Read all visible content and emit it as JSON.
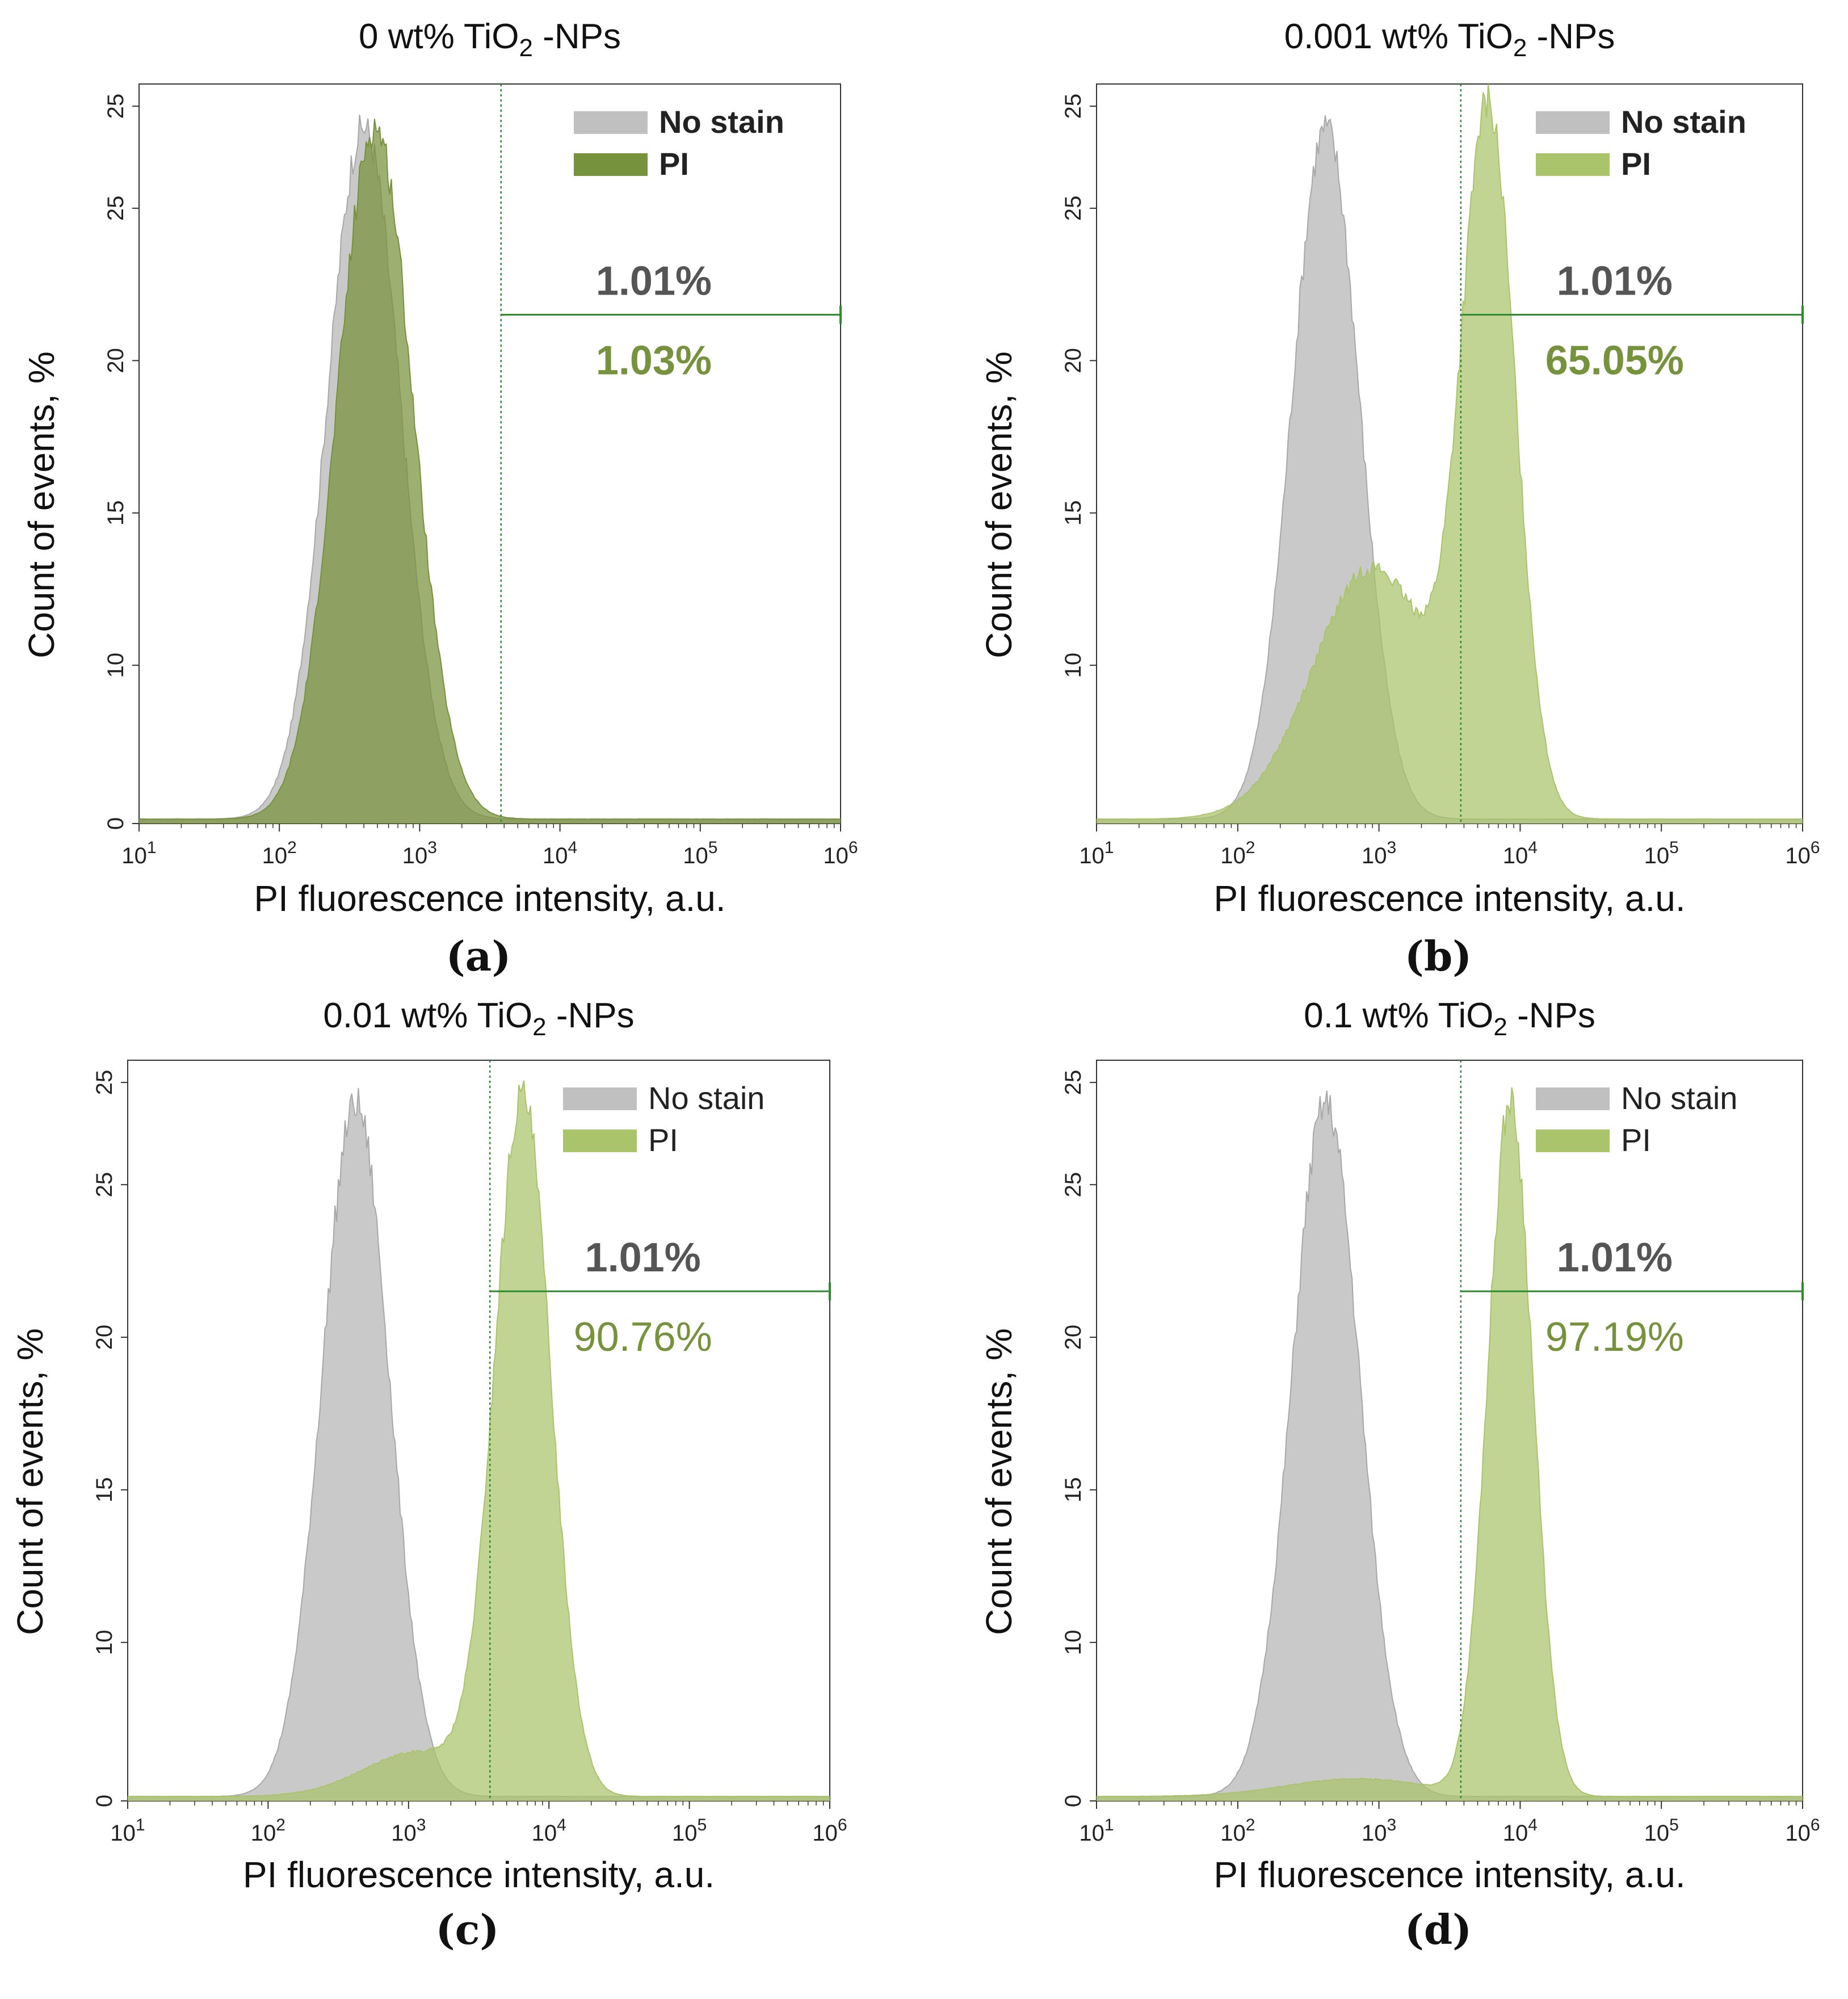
{
  "chart_data": [
    {
      "type": "area",
      "panel_label": "(a)",
      "title": {
        "prefix": "0 wt% TiO",
        "sub": "2",
        "suffix": " -NPs"
      },
      "xlabel": "PI fluorescence intensity, a.u.",
      "ylabel": "Count of events, %",
      "x_scale": "log",
      "xlim": [
        10,
        1000000
      ],
      "ylim": [
        0,
        25
      ],
      "x_tick_labels": [
        {
          "base": "10",
          "exp": "1",
          "value": 10
        },
        {
          "base": "10",
          "exp": "2",
          "value": 100
        },
        {
          "base": "10",
          "exp": "3",
          "value": 1000
        },
        {
          "base": "10",
          "exp": "4",
          "value": 10000
        },
        {
          "base": "10",
          "exp": "5",
          "value": 100000
        },
        {
          "base": "10",
          "exp": "6",
          "value": 1000000
        }
      ],
      "y_tick_labels": [
        "0",
        "10",
        "15",
        "20",
        "25",
        "25"
      ],
      "legend": {
        "placement": "top-right",
        "bold": true
      },
      "series": [
        {
          "name": "No stain",
          "color": "#c0c0c0",
          "peaks": [
            {
              "x": 400,
              "height": 23.4,
              "width": 0.26
            }
          ]
        },
        {
          "name": "PI",
          "color": "#77923c",
          "peaks": [
            {
              "x": 480,
              "height": 23.4,
              "width": 0.27
            }
          ]
        }
      ],
      "gate_x": 3800,
      "gate_y": 17.2,
      "gate_values": {
        "no_stain": "1.01%",
        "pi": "1.03%"
      },
      "pct_bold": true
    },
    {
      "type": "area",
      "panel_label": "(b)",
      "title": {
        "prefix": "0.001 wt% TiO",
        "sub": "2",
        "suffix": " -NPs"
      },
      "xlabel": "PI fluorescence intensity, a.u.",
      "ylabel": "Count of events, %",
      "x_scale": "log",
      "xlim": [
        10,
        1000000
      ],
      "ylim": [
        0,
        25
      ],
      "x_tick_labels": [
        {
          "base": "10",
          "exp": "1",
          "value": 10
        },
        {
          "base": "10",
          "exp": "2",
          "value": 100
        },
        {
          "base": "10",
          "exp": "3",
          "value": 1000
        },
        {
          "base": "10",
          "exp": "4",
          "value": 10000
        },
        {
          "base": "10",
          "exp": "5",
          "value": 100000
        },
        {
          "base": "10",
          "exp": "6",
          "value": 1000000
        }
      ],
      "y_tick_labels": [
        "10",
        "15",
        "20",
        "25",
        "25"
      ],
      "legend": {
        "placement": "top-right",
        "bold": true
      },
      "series": [
        {
          "name": "No stain",
          "color": "#c0c0c0",
          "peaks": [
            {
              "x": 420,
              "height": 23.4,
              "width": 0.24
            }
          ]
        },
        {
          "name": "PI",
          "color": "#a9c46b",
          "peaks": [
            {
              "x": 6000,
              "height": 23.0,
              "width": 0.19
            },
            {
              "x": 900,
              "height": 8.5,
              "width": 0.42
            }
          ]
        }
      ],
      "gate_x": 3800,
      "gate_y": 17.2,
      "gate_values": {
        "no_stain": "1.01%",
        "pi": "65.05%"
      },
      "pct_bold": true
    },
    {
      "type": "area",
      "panel_label": "(c)",
      "title": {
        "prefix": "0.01 wt% TiO",
        "sub": "2",
        "suffix": " -NPs"
      },
      "xlabel": "PI fluorescence intensity, a.u.",
      "ylabel": "Count of events, %",
      "x_scale": "log",
      "xlim": [
        10,
        1000000
      ],
      "ylim": [
        0,
        25
      ],
      "x_tick_labels": [
        {
          "base": "10",
          "exp": "1",
          "value": 10
        },
        {
          "base": "10",
          "exp": "2",
          "value": 100
        },
        {
          "base": "10",
          "exp": "3",
          "value": 1000
        },
        {
          "base": "10",
          "exp": "4",
          "value": 10000
        },
        {
          "base": "10",
          "exp": "5",
          "value": 100000
        },
        {
          "base": "10",
          "exp": "6",
          "value": 1000000
        }
      ],
      "y_tick_labels": [
        "0",
        "10",
        "15",
        "20",
        "25",
        "25"
      ],
      "legend": {
        "placement": "top-right",
        "bold": false
      },
      "series": [
        {
          "name": "No stain",
          "color": "#c0c0c0",
          "peaks": [
            {
              "x": 420,
              "height": 23.4,
              "width": 0.24
            }
          ]
        },
        {
          "name": "PI",
          "color": "#a9c46b",
          "peaks": [
            {
              "x": 6500,
              "height": 23.4,
              "width": 0.2
            },
            {
              "x": 1200,
              "height": 1.5,
              "width": 0.4
            }
          ]
        }
      ],
      "gate_x": 3800,
      "gate_y": 17.2,
      "gate_values": {
        "no_stain": "1.01%",
        "pi": "90.76%"
      },
      "pct_bold": false
    },
    {
      "type": "area",
      "panel_label": "(d)",
      "title": {
        "prefix": "0.1 wt% TiO",
        "sub": "2",
        "suffix": " -NPs"
      },
      "xlabel": "PI fluorescence intensity, a.u.",
      "ylabel": "Count of events, %",
      "x_scale": "log",
      "xlim": [
        10,
        1000000
      ],
      "ylim": [
        0,
        25
      ],
      "x_tick_labels": [
        {
          "base": "10",
          "exp": "1",
          "value": 10
        },
        {
          "base": "10",
          "exp": "2",
          "value": 100
        },
        {
          "base": "10",
          "exp": "3",
          "value": 1000
        },
        {
          "base": "10",
          "exp": "4",
          "value": 10000
        },
        {
          "base": "10",
          "exp": "5",
          "value": 100000
        },
        {
          "base": "10",
          "exp": "6",
          "value": 1000000
        }
      ],
      "y_tick_labels": [
        "0",
        "10",
        "15",
        "20",
        "25",
        "25"
      ],
      "legend": {
        "placement": "top-right",
        "bold": false
      },
      "series": [
        {
          "name": "No stain",
          "color": "#c0c0c0",
          "peaks": [
            {
              "x": 420,
              "height": 23.4,
              "width": 0.24
            }
          ]
        },
        {
          "name": "PI",
          "color": "#a9c46b",
          "peaks": [
            {
              "x": 8500,
              "height": 23.4,
              "width": 0.16
            },
            {
              "x": 700,
              "height": 0.6,
              "width": 0.5
            }
          ]
        }
      ],
      "gate_x": 3800,
      "gate_y": 17.2,
      "gate_values": {
        "no_stain": "1.01%",
        "pi": "97.19%"
      },
      "pct_bold": false
    }
  ],
  "colors": {
    "no_stain": "#c0c0c0",
    "pi_dark": "#77923c",
    "pi_light": "#a9c46b",
    "gate": "#2e8b2e",
    "pct_gray": "#555555",
    "pct_green": "#77923c"
  }
}
